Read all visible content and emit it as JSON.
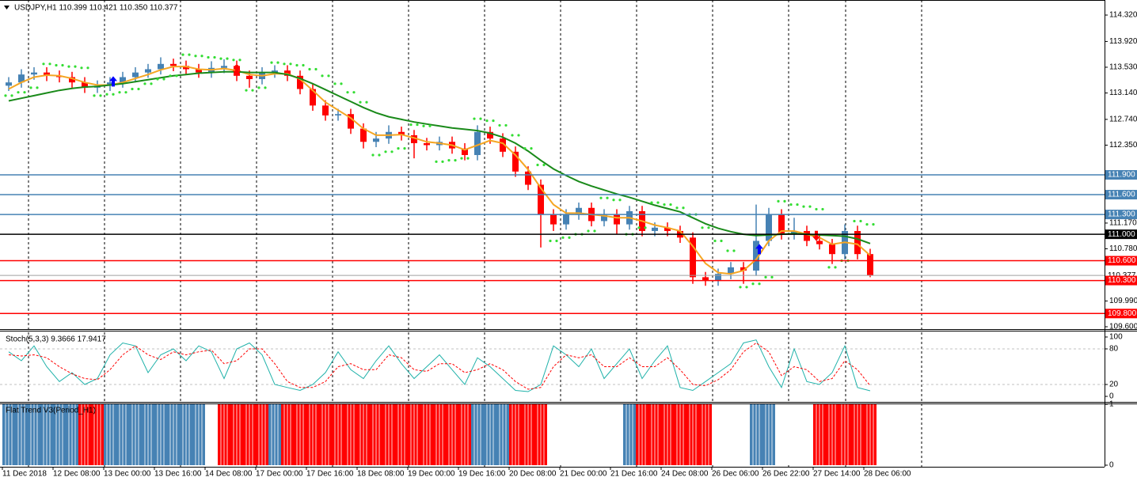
{
  "chart_data": [
    {
      "type": "candlestick",
      "title": "USDJPY,H1  110.399 110.421 110.350 110.377",
      "x": [
        0,
        4,
        8,
        12,
        16,
        20,
        24,
        28,
        32,
        36,
        40,
        44,
        48,
        52,
        56,
        60,
        64,
        68,
        72,
        76,
        80,
        84,
        88,
        92,
        96,
        100,
        104,
        108,
        112,
        116,
        120,
        124,
        128,
        132,
        136,
        140,
        144,
        148,
        152,
        156,
        160,
        164,
        168,
        172,
        176,
        180,
        184,
        188,
        192,
        196,
        200,
        204,
        208,
        212,
        216,
        220,
        224,
        228,
        232,
        236,
        240,
        244,
        248,
        252,
        256,
        260,
        264,
        268,
        272
      ],
      "open": [
        113.25,
        113.3,
        113.42,
        113.45,
        113.4,
        113.38,
        113.3,
        113.22,
        113.25,
        113.3,
        113.38,
        113.45,
        113.5,
        113.58,
        113.55,
        113.5,
        113.45,
        113.52,
        113.55,
        113.4,
        113.35,
        113.45,
        113.48,
        113.4,
        113.2,
        112.95,
        112.8,
        112.82,
        112.6,
        112.4,
        112.45,
        112.55,
        112.5,
        112.38,
        112.35,
        112.4,
        112.3,
        112.2,
        112.55,
        112.45,
        112.25,
        111.95,
        111.75,
        111.3,
        111.15,
        111.3,
        111.4,
        111.2,
        111.3,
        111.15,
        111.35,
        111.05,
        111.1,
        111.05,
        110.95,
        110.35,
        110.3,
        110.4,
        110.5,
        110.45,
        110.9,
        111.3,
        111.0,
        111.05,
        110.9,
        110.85,
        110.7,
        111.05,
        110.7
      ],
      "high": [
        113.38,
        113.5,
        113.53,
        113.53,
        113.48,
        113.46,
        113.38,
        113.33,
        113.38,
        113.46,
        113.53,
        113.58,
        113.68,
        113.66,
        113.63,
        113.58,
        113.62,
        113.65,
        113.63,
        113.48,
        113.53,
        113.56,
        113.56,
        113.48,
        113.28,
        113.03,
        112.9,
        112.9,
        112.68,
        112.55,
        112.65,
        112.63,
        112.58,
        112.46,
        112.48,
        112.48,
        112.38,
        112.65,
        112.63,
        112.53,
        112.33,
        112.03,
        111.83,
        111.38,
        111.38,
        111.48,
        111.48,
        111.38,
        111.38,
        111.43,
        111.43,
        111.18,
        111.18,
        111.13,
        111.03,
        110.43,
        110.48,
        110.58,
        110.58,
        111.45,
        111.4,
        111.38,
        111.25,
        111.13,
        110.98,
        110.93,
        111.15,
        111.13,
        110.78
      ],
      "low": [
        113.17,
        113.22,
        113.34,
        113.32,
        113.3,
        113.22,
        113.14,
        113.14,
        113.17,
        113.22,
        113.3,
        113.37,
        113.42,
        113.47,
        113.42,
        113.37,
        113.37,
        113.44,
        113.32,
        113.22,
        113.27,
        113.37,
        113.32,
        113.12,
        112.87,
        112.72,
        112.72,
        112.52,
        112.3,
        112.32,
        112.37,
        112.42,
        112.15,
        112.27,
        112.27,
        112.22,
        112.12,
        112.12,
        112.37,
        112.17,
        111.87,
        111.67,
        110.8,
        111.05,
        111.07,
        111.22,
        111.12,
        111.12,
        111.0,
        111.07,
        110.97,
        110.97,
        110.97,
        110.87,
        110.25,
        110.22,
        110.22,
        110.32,
        110.25,
        110.37,
        110.82,
        110.92,
        110.92,
        110.82,
        110.77,
        110.55,
        110.62,
        110.62,
        110.35
      ],
      "close": [
        113.3,
        113.42,
        113.45,
        113.4,
        113.38,
        113.3,
        113.22,
        113.25,
        113.3,
        113.38,
        113.45,
        113.5,
        113.58,
        113.55,
        113.5,
        113.45,
        113.52,
        113.55,
        113.4,
        113.35,
        113.45,
        113.48,
        113.4,
        113.2,
        112.95,
        112.8,
        112.82,
        112.6,
        112.4,
        112.45,
        112.55,
        112.5,
        112.38,
        112.35,
        112.4,
        112.3,
        112.2,
        112.55,
        112.45,
        112.25,
        111.95,
        111.75,
        111.3,
        111.15,
        111.3,
        111.4,
        111.2,
        111.3,
        111.15,
        111.35,
        111.05,
        111.1,
        111.05,
        110.95,
        110.35,
        110.3,
        110.4,
        110.5,
        110.45,
        110.9,
        111.3,
        111.0,
        111.05,
        110.9,
        110.85,
        110.7,
        111.05,
        110.7,
        110.38
      ],
      "up_color": "#4682b4",
      "down_color": "#ff0000",
      "overlays": [
        {
          "color": "#f5a623",
          "values": [
            113.2,
            113.3,
            113.38,
            113.41,
            113.4,
            113.36,
            113.3,
            113.26,
            113.26,
            113.3,
            113.36,
            113.42,
            113.49,
            113.54,
            113.54,
            113.5,
            113.49,
            113.51,
            113.48,
            113.42,
            113.4,
            113.43,
            113.43,
            113.35,
            113.18,
            113.0,
            112.88,
            112.76,
            112.6,
            112.5,
            112.5,
            112.51,
            112.46,
            112.4,
            112.38,
            112.35,
            112.28,
            112.35,
            112.42,
            112.38,
            112.2,
            111.98,
            111.7,
            111.45,
            111.32,
            111.32,
            111.3,
            111.28,
            111.25,
            111.25,
            111.2,
            111.14,
            111.1,
            111.05,
            110.82,
            110.56,
            110.42,
            110.4,
            110.45,
            110.62,
            110.9,
            111.05,
            111.05,
            111.0,
            110.95,
            110.85,
            110.88,
            110.85,
            110.68
          ]
        },
        {
          "color": "#1a8a1a",
          "values": [
            113.02,
            113.06,
            113.1,
            113.14,
            113.18,
            113.21,
            113.23,
            113.24,
            113.26,
            113.28,
            113.31,
            113.34,
            113.37,
            113.4,
            113.42,
            113.44,
            113.45,
            113.46,
            113.46,
            113.45,
            113.45,
            113.45,
            113.42,
            113.36,
            113.28,
            113.19,
            113.1,
            113.01,
            112.92,
            112.84,
            112.78,
            112.74,
            112.7,
            112.67,
            112.64,
            112.61,
            112.59,
            112.57,
            112.53,
            112.47,
            112.38,
            112.26,
            112.12,
            111.99,
            111.89,
            111.8,
            111.73,
            111.67,
            111.61,
            111.56,
            111.5,
            111.44,
            111.39,
            111.34,
            111.25,
            111.16,
            111.09,
            111.04,
            111.0,
            110.98,
            110.99,
            111.0,
            111.01,
            111.0,
            110.99,
            110.98,
            110.97,
            110.93,
            110.86
          ]
        }
      ],
      "sar": {
        "color": "#33dd33",
        "values": [
          113.1,
          113.15,
          113.22,
          113.58,
          113.56,
          113.54,
          113.52,
          113.1,
          113.12,
          113.15,
          113.2,
          113.28,
          113.35,
          113.4,
          113.72,
          113.7,
          113.68,
          113.66,
          113.64,
          113.18,
          113.22,
          113.6,
          113.58,
          113.56,
          113.5,
          113.4,
          113.28,
          113.15,
          113.0,
          112.2,
          112.25,
          112.3,
          112.66,
          112.64,
          112.1,
          112.12,
          112.15,
          112.75,
          112.72,
          112.65,
          112.5,
          112.3,
          112.05,
          110.9,
          110.95,
          111.0,
          111.05,
          111.55,
          111.52,
          111.0,
          111.1,
          111.48,
          111.45,
          111.4,
          111.3,
          111.1,
          110.9,
          110.75,
          110.2,
          110.25,
          110.35,
          111.5,
          111.45,
          111.42,
          111.38,
          110.5,
          110.6,
          111.2,
          111.15
        ]
      },
      "up_arrows": {
        "color": "#0000ff",
        "x": [
          35,
          239
        ],
        "values": [
          113.31,
          110.77
        ]
      },
      "down_arrows": {
        "color": "#ff0000",
        "x": [
          74,
          257
        ],
        "values": [
          113.49,
          110.98
        ]
      },
      "levels": [
        {
          "value": 111.9,
          "label": "111.900",
          "color": "#4682b4"
        },
        {
          "value": 111.6,
          "label": "111.600",
          "color": "#4682b4"
        },
        {
          "value": 111.3,
          "label": "111.300",
          "color": "#4682b4"
        },
        {
          "value": 111.0,
          "label": "111.000",
          "color": "#000000"
        },
        {
          "value": 110.6,
          "label": "110.600",
          "color": "#ff0000"
        },
        {
          "value": 110.3,
          "label": "110.300",
          "color": "#ff0000"
        },
        {
          "value": 109.8,
          "label": "109.800",
          "color": "#ff0000"
        }
      ],
      "last": {
        "value": 110.377,
        "label": "110.377",
        "color": "#a0a0a0"
      },
      "xlim": [
        0,
        348
      ],
      "xticks": [
        {
          "value": 0,
          "label": "11 Dec 2018"
        },
        {
          "value": 16,
          "label": "12 Dec 08:00"
        },
        {
          "value": 32,
          "label": "13 Dec 00:00"
        },
        {
          "value": 48,
          "label": "13 Dec 16:00"
        },
        {
          "value": 64,
          "label": "14 Dec 08:00"
        },
        {
          "value": 80,
          "label": "17 Dec 00:00"
        },
        {
          "value": 96,
          "label": "17 Dec 16:00"
        },
        {
          "value": 112,
          "label": "18 Dec 08:00"
        },
        {
          "value": 128,
          "label": "19 Dec 00:00"
        },
        {
          "value": 144,
          "label": "19 Dec 16:00"
        },
        {
          "value": 160,
          "label": "20 Dec 08:00"
        },
        {
          "value": 176,
          "label": "21 Dec 00:00"
        },
        {
          "value": 192,
          "label": "21 Dec 16:00"
        },
        {
          "value": 208,
          "label": "24 Dec 08:00"
        },
        {
          "value": 224,
          "label": "26 Dec 06:00"
        },
        {
          "value": 240,
          "label": "26 Dec 22:00"
        },
        {
          "value": 256,
          "label": "27 Dec 14:00"
        },
        {
          "value": 272,
          "label": "28 Dec 06:00"
        }
      ],
      "ylim": [
        109.564,
        114.548
      ],
      "yticks": [
        {
          "value": 114.32,
          "label": "114.320"
        },
        {
          "value": 113.92,
          "label": "113.920"
        },
        {
          "value": 113.53,
          "label": "113.530"
        },
        {
          "value": 113.14,
          "label": "113.140"
        },
        {
          "value": 112.74,
          "label": "112.740"
        },
        {
          "value": 112.35,
          "label": "112.350"
        },
        {
          "value": 111.17,
          "label": "111.170"
        },
        {
          "value": 110.78,
          "label": "110.780"
        },
        {
          "value": 109.99,
          "label": "109.990"
        },
        {
          "value": 109.6,
          "label": "109.600"
        }
      ]
    },
    {
      "type": "line",
      "title": "Stoch(5,3,3) 9.3666 17.9417",
      "series": [
        {
          "color": "#20b2aa",
          "dash": false,
          "values": [
            75,
            60,
            85,
            50,
            25,
            40,
            20,
            30,
            70,
            90,
            85,
            40,
            70,
            80,
            60,
            85,
            75,
            30,
            80,
            90,
            70,
            20,
            15,
            10,
            20,
            40,
            75,
            45,
            30,
            60,
            85,
            55,
            30,
            50,
            70,
            45,
            20,
            65,
            50,
            30,
            10,
            8,
            20,
            85,
            70,
            50,
            80,
            30,
            55,
            80,
            30,
            60,
            85,
            15,
            10,
            25,
            40,
            55,
            90,
            95,
            50,
            15,
            80,
            25,
            20,
            40,
            85,
            15,
            9.3666
          ]
        },
        {
          "color": "#ff0000",
          "dash": true,
          "values": [
            70,
            68,
            70,
            65,
            50,
            38,
            30,
            28,
            45,
            70,
            85,
            70,
            62,
            75,
            70,
            75,
            78,
            55,
            60,
            80,
            80,
            55,
            25,
            15,
            15,
            25,
            50,
            55,
            45,
            45,
            70,
            65,
            45,
            42,
            55,
            55,
            40,
            45,
            55,
            45,
            25,
            12,
            15,
            50,
            70,
            65,
            70,
            50,
            50,
            65,
            50,
            50,
            65,
            45,
            20,
            18,
            28,
            45,
            75,
            90,
            75,
            35,
            50,
            45,
            25,
            30,
            60,
            45,
            17.9417
          ]
        }
      ],
      "levels": [
        20,
        80
      ],
      "ylim": [
        -9.3,
        109.3
      ],
      "yticks": [
        0,
        20,
        80,
        100
      ]
    },
    {
      "type": "bar",
      "title": "Flat Trend V3(Period_H1)",
      "values": [
        1,
        1,
        1,
        1,
        1,
        1,
        1,
        1,
        1,
        1,
        1,
        1,
        1,
        1,
        1,
        1,
        1,
        1,
        1,
        1,
        1,
        1,
        1,
        1,
        1,
        1,
        1,
        1,
        1,
        1,
        1,
        1,
        1,
        1,
        1,
        1,
        1,
        1,
        1,
        1,
        1,
        1,
        1,
        1,
        1,
        1,
        1,
        1,
        1,
        1,
        1,
        1,
        1,
        1,
        1,
        1,
        1,
        1,
        1,
        1,
        1,
        1,
        1,
        1,
        1,
        1,
        1,
        1,
        1
      ],
      "states": [
        "up",
        "up",
        "up",
        "up",
        "up",
        "up",
        "down",
        "down",
        "up",
        "up",
        "up",
        "up",
        "up",
        "up",
        "up",
        "up",
        "flat",
        "down",
        "down",
        "down",
        "down",
        "up",
        "down",
        "down",
        "down",
        "down",
        "down",
        "down",
        "down",
        "down",
        "down",
        "down",
        "down",
        "down",
        "down",
        "down",
        "down",
        "up",
        "up",
        "up",
        "down",
        "down",
        "down",
        "flat",
        "flat",
        "flat",
        "flat",
        "flat",
        "flat",
        "up",
        "down",
        "down",
        "down",
        "down",
        "down",
        "down",
        "flat",
        "flat",
        "flat",
        "up",
        "up",
        "flat",
        "flat",
        "flat",
        "down",
        "down",
        "down",
        "down",
        "down"
      ],
      "palette": {
        "up": "#4682b4",
        "down": "#ff0000",
        "flat": "#ffffff"
      },
      "ylim": [
        0,
        1
      ],
      "yticks": [
        0,
        1
      ]
    }
  ]
}
